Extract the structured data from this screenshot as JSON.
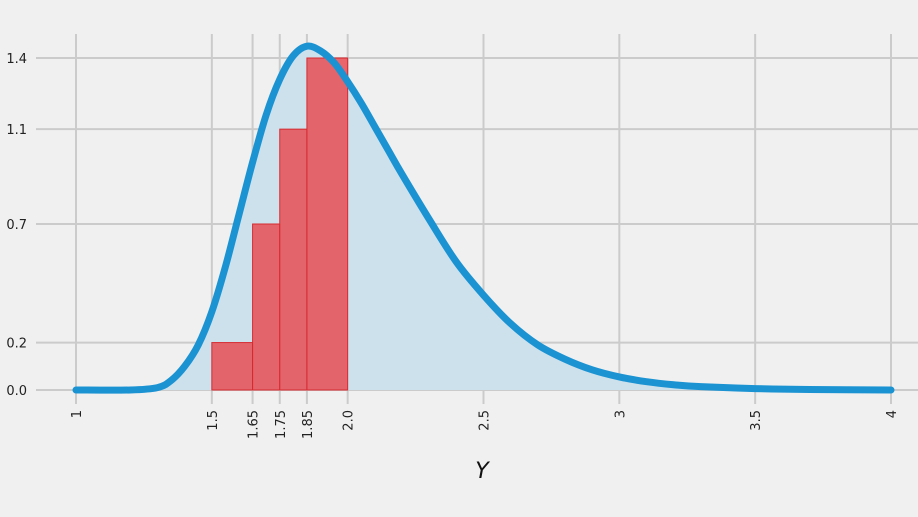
{
  "chart_data": {
    "type": "area",
    "title": "",
    "xlabel": "Y",
    "ylabel": "",
    "xlim": [
      1,
      4
    ],
    "ylim": [
      0,
      1.45
    ],
    "grid": true,
    "x_ticks": [
      {
        "value": 1,
        "label": "1"
      },
      {
        "value": 1.5,
        "label": "1.5"
      },
      {
        "value": 1.65,
        "label": "1.65"
      },
      {
        "value": 1.75,
        "label": "1.75"
      },
      {
        "value": 1.85,
        "label": "1.85"
      },
      {
        "value": 2.0,
        "label": "2.0"
      },
      {
        "value": 2.5,
        "label": "2.5"
      },
      {
        "value": 3,
        "label": "3"
      },
      {
        "value": 3.5,
        "label": "3.5"
      },
      {
        "value": 4,
        "label": "4"
      }
    ],
    "y_ticks": [
      {
        "value": 0.0,
        "label": "0.0"
      },
      {
        "value": 0.2,
        "label": "0.2"
      },
      {
        "value": 0.7,
        "label": "0.7"
      },
      {
        "value": 1.1,
        "label": "1.1"
      },
      {
        "value": 1.4,
        "label": "1.4"
      }
    ],
    "bars": [
      {
        "x0": 1.5,
        "x1": 1.65,
        "value": 0.2
      },
      {
        "x0": 1.65,
        "x1": 1.75,
        "value": 0.7
      },
      {
        "x0": 1.75,
        "x1": 1.85,
        "value": 1.1
      },
      {
        "x0": 1.85,
        "x1": 2.0,
        "value": 1.4
      }
    ],
    "curve": {
      "x": [
        1.0,
        1.2,
        1.3,
        1.35,
        1.4,
        1.45,
        1.5,
        1.55,
        1.6,
        1.65,
        1.7,
        1.75,
        1.8,
        1.85,
        1.9,
        1.95,
        2.0,
        2.05,
        2.1,
        2.15,
        2.2,
        2.3,
        2.4,
        2.5,
        2.6,
        2.7,
        2.8,
        2.9,
        3.0,
        3.1,
        3.2,
        3.3,
        3.5,
        3.7,
        4.0
      ],
      "y": [
        0.0,
        0.0,
        0.01,
        0.04,
        0.1,
        0.19,
        0.33,
        0.52,
        0.74,
        0.96,
        1.16,
        1.31,
        1.41,
        1.45,
        1.43,
        1.38,
        1.3,
        1.21,
        1.11,
        1.01,
        0.91,
        0.72,
        0.54,
        0.4,
        0.28,
        0.19,
        0.13,
        0.085,
        0.055,
        0.035,
        0.022,
        0.014,
        0.006,
        0.002,
        0.0
      ]
    },
    "colors": {
      "line": "#1b93d3",
      "fill": "#cde1ec",
      "bar_fill": "#e64d55",
      "bar_edge": "#d62a30"
    }
  }
}
